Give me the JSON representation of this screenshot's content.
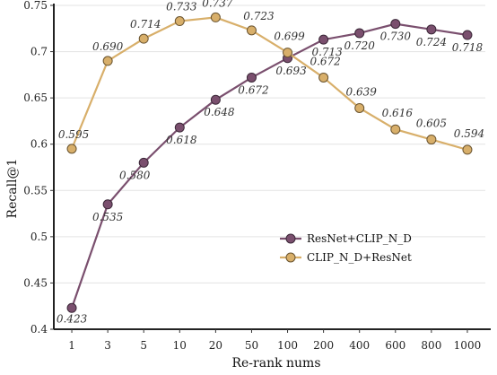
{
  "chart_data": {
    "type": "line",
    "title": "",
    "xlabel": "Re-rank nums",
    "ylabel": "Recall@1",
    "categories": [
      "1",
      "3",
      "5",
      "10",
      "20",
      "50",
      "100",
      "200",
      "400",
      "600",
      "800",
      "1000"
    ],
    "ylim": [
      0.4,
      0.75
    ],
    "yticks": [
      0.4,
      0.45,
      0.5,
      0.55,
      0.6,
      0.65,
      0.7,
      0.75
    ],
    "ytick_labels": [
      "0.4",
      "0.45",
      "0.5",
      "0.55",
      "0.6",
      "0.65",
      "0.7",
      "0.75"
    ],
    "grid": "horizontal",
    "legend_position": "lower-right",
    "series": [
      {
        "name": "ResNet+CLIP_N_D",
        "color": "#7a4f6e",
        "values": [
          0.423,
          0.535,
          0.58,
          0.618,
          0.648,
          0.672,
          0.693,
          0.713,
          0.72,
          0.73,
          0.724,
          0.718
        ],
        "labels": [
          "0.423",
          "0.535",
          "0.580",
          "0.618",
          "0.648",
          "0.672",
          "0.693",
          "0.713",
          "0.720",
          "0.730",
          "0.724",
          "0.718"
        ]
      },
      {
        "name": "CLIP_N_D+ResNet",
        "color": "#d8af6a",
        "values": [
          0.595,
          0.69,
          0.714,
          0.733,
          0.737,
          0.723,
          0.699,
          0.672,
          0.639,
          0.616,
          0.605,
          0.594
        ],
        "labels": [
          "0.595",
          "0.690",
          "0.714",
          "0.733",
          "0.737",
          "0.723",
          "0.699",
          "0.672",
          "0.639",
          "0.616",
          "0.605",
          "0.594"
        ]
      }
    ]
  }
}
